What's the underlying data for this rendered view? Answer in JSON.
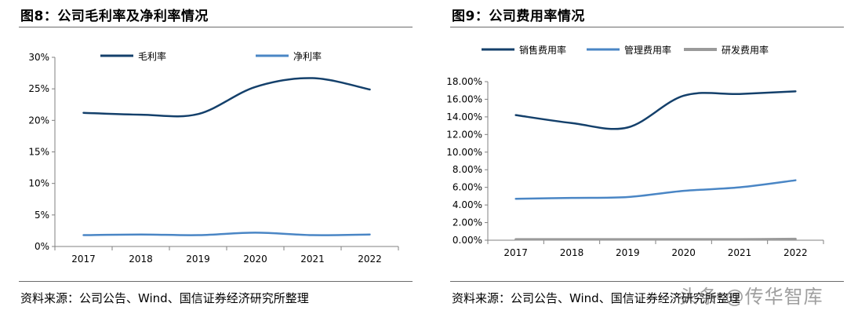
{
  "left_panel": {
    "title": "图8：公司毛利率及净利率情况",
    "source": "资料来源：公司公告、Wind、国信证券经济研究所整理"
  },
  "right_panel": {
    "title": "图9：公司费用率情况",
    "source": "资料来源：公司公告、Wind、国信证券经济研究所整理"
  },
  "watermark": "头条 @传华智库",
  "chart_data": [
    {
      "type": "line",
      "categories": [
        "2017",
        "2018",
        "2019",
        "2020",
        "2021",
        "2022"
      ],
      "ylim": [
        0,
        30
      ],
      "yticks": [
        0,
        5,
        10,
        15,
        20,
        25,
        30
      ],
      "ytick_labels": [
        "0%",
        "5%",
        "10%",
        "15%",
        "20%",
        "25%",
        "30%"
      ],
      "legend_position": "top",
      "grid": false,
      "series": [
        {
          "name": "毛利率",
          "values": [
            21.2,
            20.9,
            21.0,
            25.3,
            26.7,
            24.9
          ],
          "color": "#14406b"
        },
        {
          "name": "净利率",
          "values": [
            1.8,
            1.9,
            1.8,
            2.2,
            1.8,
            1.9
          ],
          "color": "#4a86c5"
        }
      ]
    },
    {
      "type": "line",
      "categories": [
        "2017",
        "2018",
        "2019",
        "2020",
        "2021",
        "2022"
      ],
      "ylim": [
        0,
        18
      ],
      "yticks": [
        0,
        2,
        4,
        6,
        8,
        10,
        12,
        14,
        16,
        18
      ],
      "ytick_labels": [
        "0.00%",
        "2.00%",
        "4.00%",
        "6.00%",
        "8.00%",
        "10.00%",
        "12.00%",
        "14.00%",
        "16.00%",
        "18.00%"
      ],
      "legend_position": "top",
      "grid": false,
      "series": [
        {
          "name": "销售费用率",
          "values": [
            14.2,
            13.3,
            12.8,
            16.4,
            16.6,
            16.9
          ],
          "color": "#14406b"
        },
        {
          "name": "管理费用率",
          "values": [
            4.7,
            4.8,
            4.9,
            5.6,
            6.0,
            6.8
          ],
          "color": "#4a86c5"
        },
        {
          "name": "研发费用率",
          "values": [
            0.1,
            0.1,
            0.1,
            0.1,
            0.1,
            0.15
          ],
          "color": "#9a9a9a"
        }
      ]
    }
  ]
}
